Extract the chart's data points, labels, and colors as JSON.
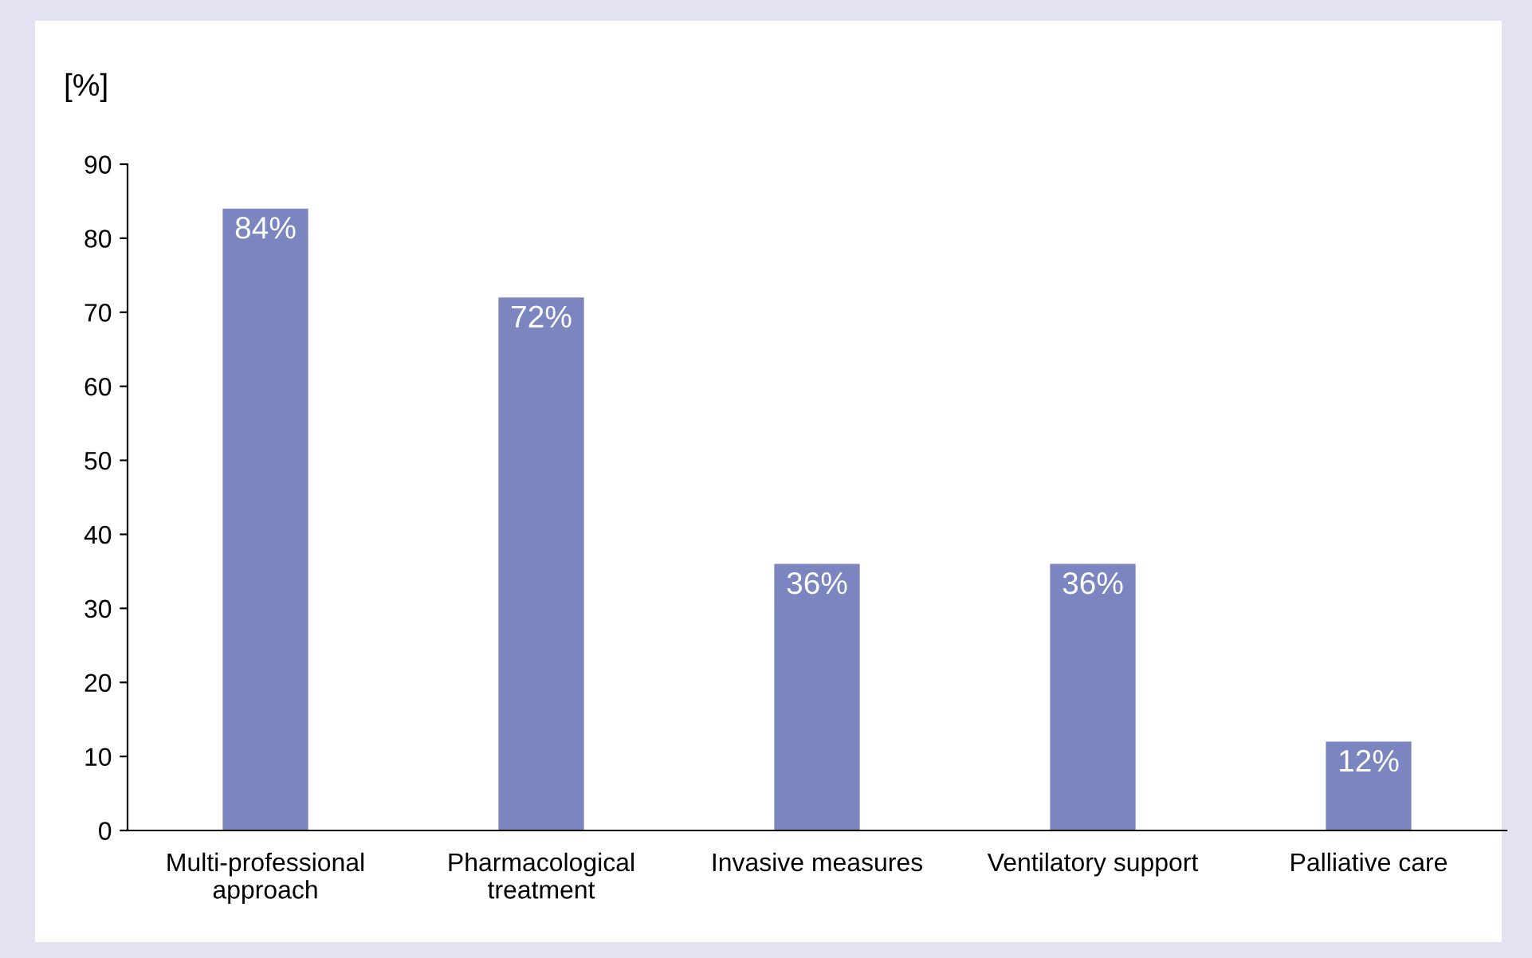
{
  "chart_data": {
    "type": "bar",
    "ylabel": "[%]",
    "categories": [
      "Multi-professional\napproach",
      "Pharmacological\ntreatment",
      "Invasive measures",
      "Ventilatory support",
      "Palliative care"
    ],
    "values": [
      84,
      72,
      36,
      36,
      12
    ],
    "value_labels": [
      "84%",
      "72%",
      "36%",
      "36%",
      "12%"
    ],
    "color": "#7b86c0",
    "ylim": [
      0,
      90
    ],
    "yticks": [
      0,
      10,
      20,
      30,
      40,
      50,
      60,
      70,
      80,
      90
    ],
    "grid": false,
    "legend": false
  }
}
